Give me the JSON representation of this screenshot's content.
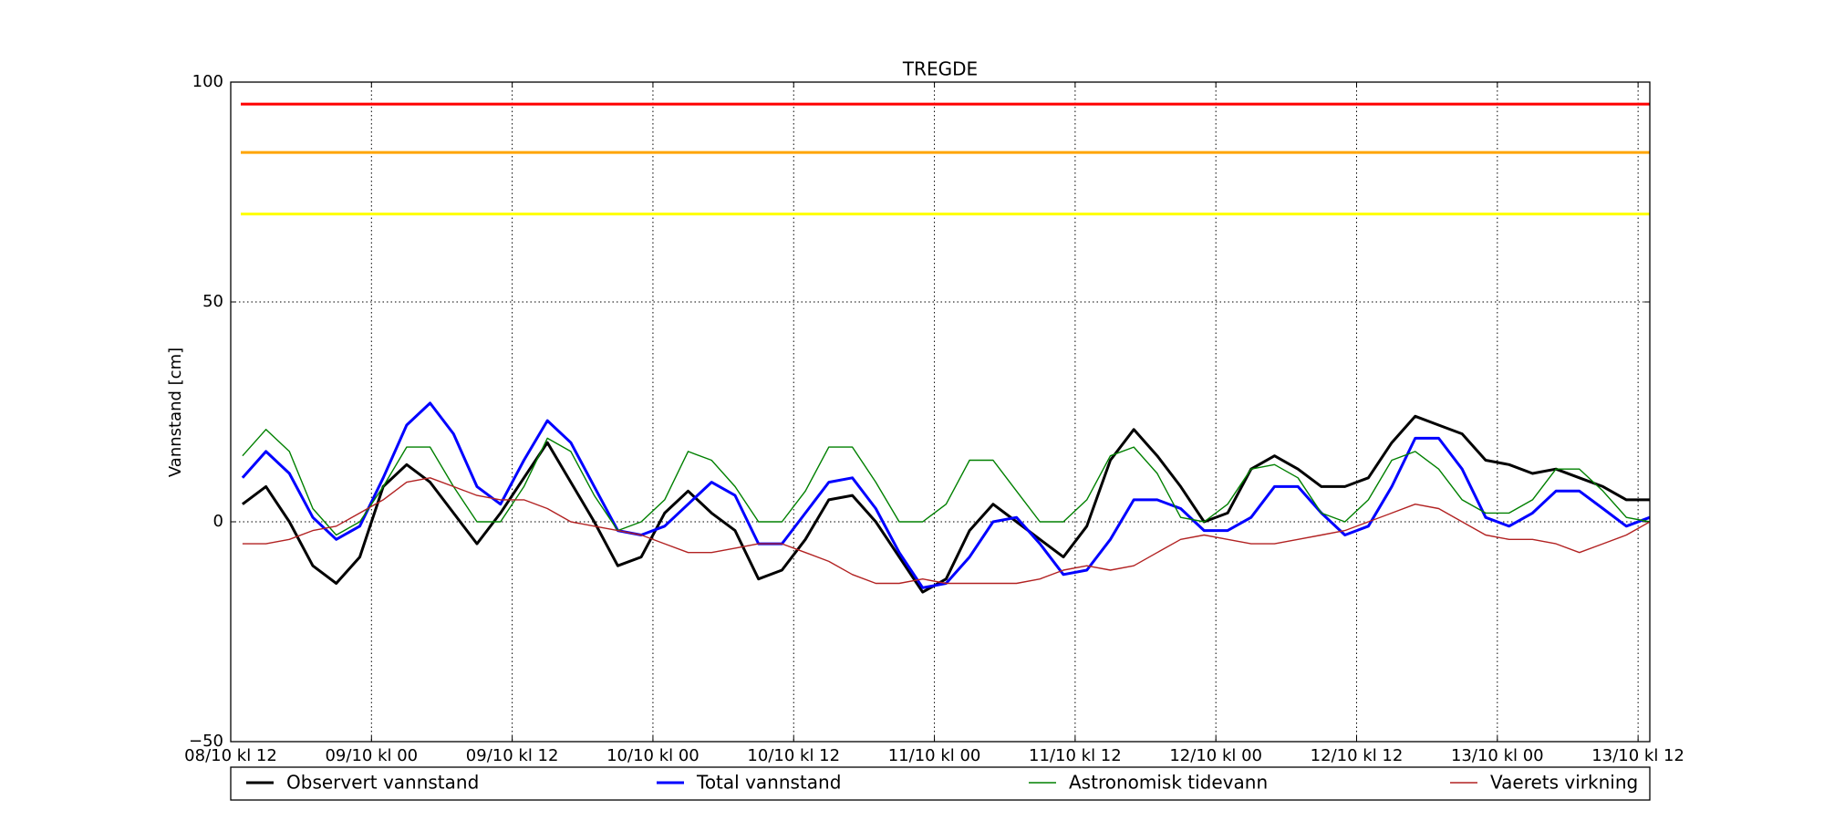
{
  "chart_data": {
    "type": "line",
    "title": "TREGDE",
    "ylabel": "Vannstand [cm]",
    "x": [
      1,
      3,
      5,
      7,
      9,
      11,
      13,
      15,
      17,
      19,
      21,
      23,
      25,
      27,
      29,
      31,
      33,
      35,
      37,
      39,
      41,
      43,
      45,
      47,
      49,
      51,
      53,
      55,
      57,
      59,
      61,
      63,
      65,
      67,
      69,
      71,
      73,
      75,
      77,
      79,
      81,
      83,
      85,
      87,
      89,
      91,
      93,
      95,
      97,
      99,
      101,
      103,
      105,
      107,
      109,
      111,
      113,
      115,
      117,
      119,
      121
    ],
    "xlim": [
      0,
      121
    ],
    "xticks": [
      {
        "value": 0,
        "label": "08/10 kl 12"
      },
      {
        "value": 12,
        "label": "09/10 kl 00"
      },
      {
        "value": 24,
        "label": "09/10 kl 12"
      },
      {
        "value": 36,
        "label": "10/10 kl 00"
      },
      {
        "value": 48,
        "label": "10/10 kl 12"
      },
      {
        "value": 60,
        "label": "11/10 kl 00"
      },
      {
        "value": 72,
        "label": "11/10 kl 12"
      },
      {
        "value": 84,
        "label": "12/10 kl 00"
      },
      {
        "value": 96,
        "label": "12/10 kl 12"
      },
      {
        "value": 108,
        "label": "13/10 kl 00"
      },
      {
        "value": 120,
        "label": "13/10 kl 12"
      }
    ],
    "ylim": [
      -50,
      100
    ],
    "yticks": [
      {
        "value": -50,
        "label": "−50"
      },
      0,
      50,
      100
    ],
    "grid": true,
    "thresholds": [
      {
        "value": 95,
        "color": "#ff0000"
      },
      {
        "value": 84,
        "color": "#ffa500"
      },
      {
        "value": 70,
        "color": "#ffff00"
      }
    ],
    "series": [
      {
        "name": "Observert vannstand",
        "color": "#000000",
        "linewidth": 3,
        "values": [
          4,
          8,
          0,
          -10,
          -14,
          -8,
          8,
          13,
          9,
          2,
          -5,
          2,
          10,
          18,
          9,
          0,
          -10,
          -8,
          2,
          7,
          2,
          -2,
          -13,
          -11,
          -4,
          5,
          6,
          0,
          -8,
          -16,
          -13,
          -2,
          4,
          0,
          -4,
          -8,
          -1,
          14,
          21,
          15,
          8,
          0,
          2,
          12,
          15,
          12,
          8,
          8,
          10,
          18,
          24,
          22,
          20,
          14,
          13,
          11,
          12,
          10,
          8,
          5,
          5
        ]
      },
      {
        "name": "Total vannstand",
        "color": "#0000ff",
        "linewidth": 3,
        "values": [
          10,
          16,
          11,
          1,
          -4,
          -1,
          10,
          22,
          27,
          20,
          8,
          4,
          14,
          23,
          18,
          8,
          -2,
          -3,
          -1,
          4,
          9,
          6,
          -5,
          -5,
          2,
          9,
          10,
          3,
          -7,
          -15,
          -14,
          -8,
          0,
          1,
          -5,
          -12,
          -11,
          -4,
          5,
          5,
          3,
          -2,
          -2,
          1,
          8,
          8,
          2,
          -3,
          -1,
          8,
          19,
          19,
          12,
          1,
          -1,
          2,
          7,
          7,
          3,
          -1,
          1
        ]
      },
      {
        "name": "Astronomisk tidevann",
        "color": "#008000",
        "linewidth": 1.4,
        "values": [
          15,
          21,
          16,
          3,
          -3,
          0,
          8,
          17,
          17,
          8,
          0,
          0,
          8,
          19,
          16,
          6,
          -2,
          0,
          5,
          16,
          14,
          8,
          0,
          0,
          7,
          17,
          17,
          9,
          0,
          0,
          4,
          14,
          14,
          7,
          0,
          0,
          5,
          15,
          17,
          11,
          1,
          0,
          4,
          12,
          13,
          10,
          2,
          0,
          5,
          14,
          16,
          12,
          5,
          2,
          2,
          5,
          12,
          12,
          7,
          1,
          0
        ]
      },
      {
        "name": "Vaerets virkning",
        "color": "#b22222",
        "linewidth": 1.4,
        "values": [
          -5,
          -5,
          -4,
          -2,
          -1,
          2,
          5,
          9,
          10,
          8,
          6,
          5,
          5,
          3,
          0,
          -1,
          -2,
          -3,
          -5,
          -7,
          -7,
          -6,
          -5,
          -5,
          -7,
          -9,
          -12,
          -14,
          -14,
          -13,
          -14,
          -14,
          -14,
          -14,
          -13,
          -11,
          -10,
          -11,
          -10,
          -7,
          -4,
          -3,
          -4,
          -5,
          -5,
          -4,
          -3,
          -2,
          0,
          2,
          4,
          3,
          0,
          -3,
          -4,
          -4,
          -5,
          -7,
          -5,
          -3,
          0
        ]
      }
    ]
  }
}
